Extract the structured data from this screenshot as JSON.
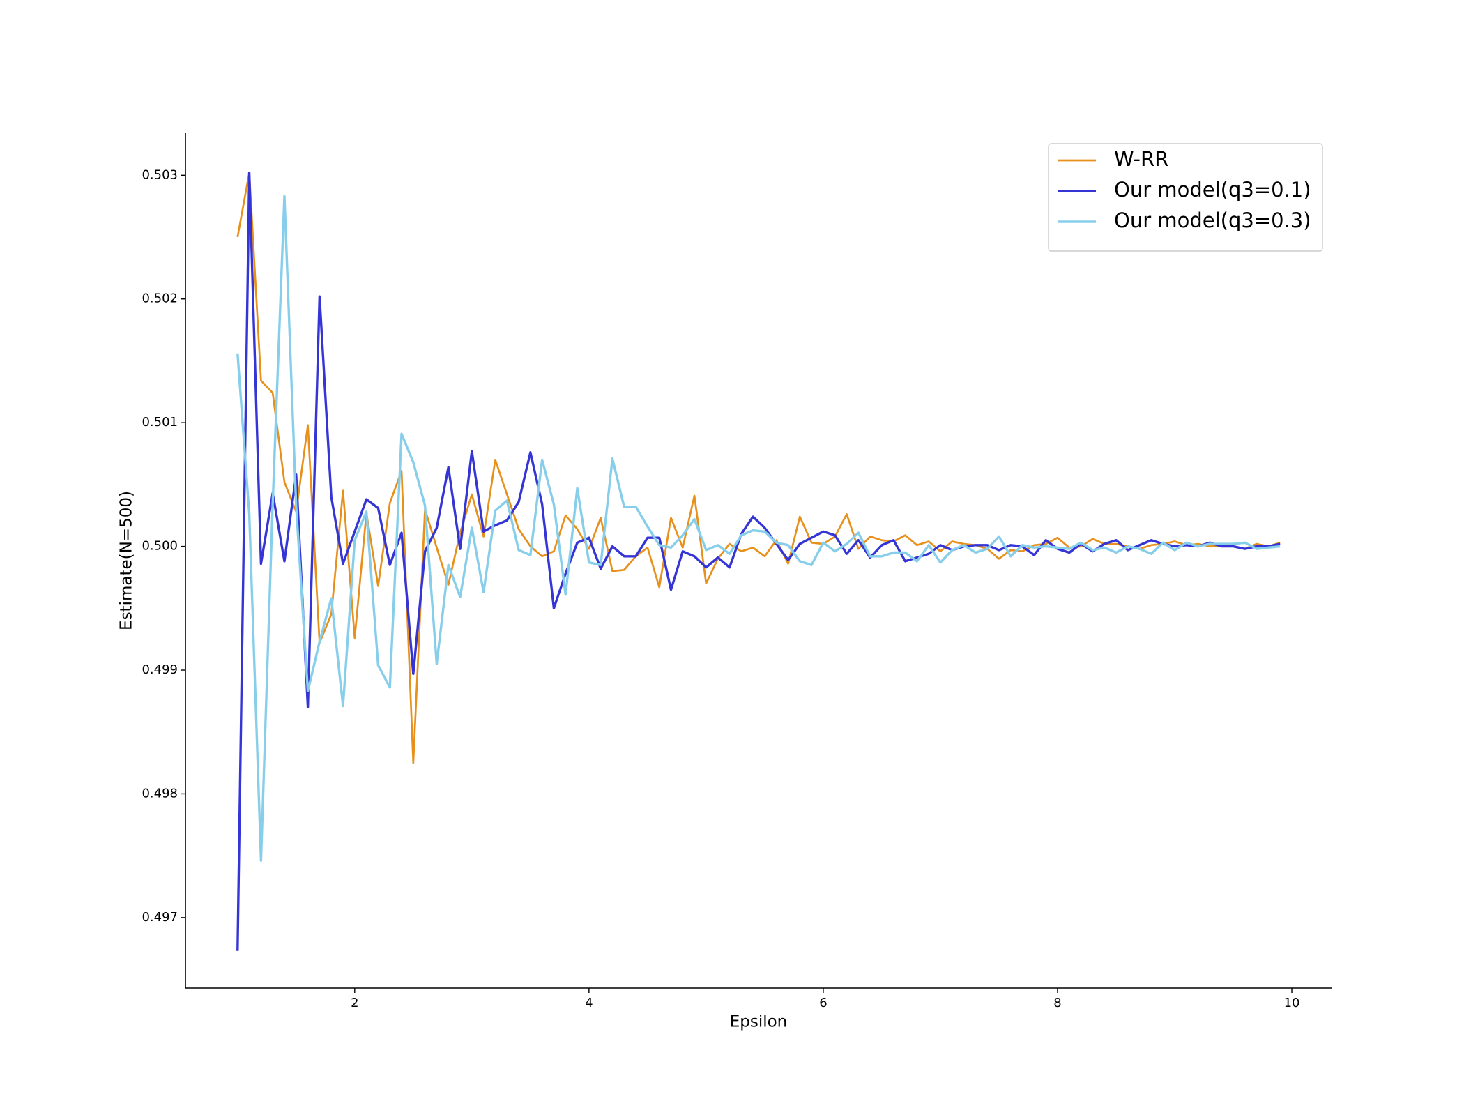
{
  "chart_data": {
    "type": "line",
    "xlabel": "Epsilon",
    "ylabel": "Estimate(N=500)",
    "xlim": [
      0.555,
      10.345
    ],
    "ylim": [
      0.49643,
      0.50334
    ],
    "xticks": [
      2,
      4,
      6,
      8,
      10
    ],
    "yticks": [
      0.497,
      0.498,
      0.499,
      {
        "value": 0.5,
        "label": "0.500"
      },
      0.501,
      0.502,
      0.503
    ],
    "grid": false,
    "legend": "upper right",
    "x": [
      1.0,
      1.1,
      1.2,
      1.3,
      1.4,
      1.5,
      1.6,
      1.7,
      1.8,
      1.9,
      2.0,
      2.1,
      2.2,
      2.3,
      2.4,
      2.5,
      2.6,
      2.7,
      2.8,
      2.9,
      3.0,
      3.1,
      3.2,
      3.3,
      3.4,
      3.5,
      3.6,
      3.7,
      3.8,
      3.9,
      4.0,
      4.1,
      4.2,
      4.3,
      4.4,
      4.5,
      4.6,
      4.7,
      4.8,
      4.9,
      5.0,
      5.1,
      5.2,
      5.3,
      5.4,
      5.5,
      5.6,
      5.7,
      5.8,
      5.9,
      6.0,
      6.1,
      6.2,
      6.3,
      6.4,
      6.5,
      6.6,
      6.7,
      6.8,
      6.9,
      7.0,
      7.1,
      7.2,
      7.3,
      7.4,
      7.5,
      7.6,
      7.7,
      7.8,
      7.9,
      8.0,
      8.1,
      8.2,
      8.3,
      8.4,
      8.5,
      8.6,
      8.7,
      8.8,
      8.9,
      9.0,
      9.1,
      9.2,
      9.3,
      9.4,
      9.5,
      9.6,
      9.7,
      9.8,
      9.9
    ],
    "series": [
      {
        "name": "W-RR",
        "color": "#e8901c",
        "width": 2.7,
        "values": [
          0.5025,
          0.50302,
          0.50134,
          0.50124,
          0.50052,
          0.50028,
          0.50098,
          0.49922,
          0.49945,
          0.50045,
          0.49926,
          0.50027,
          0.49968,
          0.50035,
          0.50061,
          0.49825,
          0.5003,
          0.49999,
          0.49969,
          0.50011,
          0.50042,
          0.50008,
          0.5007,
          0.50042,
          0.50014,
          0.5,
          0.49992,
          0.49996,
          0.50025,
          0.50014,
          0.49998,
          0.50023,
          0.4998,
          0.49981,
          0.49992,
          0.49999,
          0.49967,
          0.50023,
          0.49999,
          0.50041,
          0.4997,
          0.4999,
          0.50002,
          0.49996,
          0.49999,
          0.49992,
          0.50005,
          0.49986,
          0.50024,
          0.50003,
          0.50002,
          0.50008,
          0.50026,
          0.49998,
          0.50008,
          0.50005,
          0.50004,
          0.50009,
          0.50001,
          0.50004,
          0.49996,
          0.50004,
          0.50002,
          0.50001,
          0.49998,
          0.4999,
          0.49997,
          0.49996,
          0.50001,
          0.50002,
          0.50007,
          0.49999,
          0.5,
          0.50006,
          0.50002,
          0.50002,
          0.5,
          0.49998,
          0.50001,
          0.50002,
          0.50004,
          0.50001,
          0.50002,
          0.5,
          0.50001,
          0.5,
          0.49998,
          0.50002,
          0.5,
          0.50003
        ]
      },
      {
        "name": "Our model(q3=0.1)",
        "color": "#3535d6",
        "width": 3.4,
        "values": [
          0.49673,
          0.50302,
          0.49986,
          0.50043,
          0.49988,
          0.50058,
          0.4987,
          0.50202,
          0.5004,
          0.49986,
          0.50012,
          0.50038,
          0.50031,
          0.49985,
          0.50011,
          0.49897,
          0.49996,
          0.50015,
          0.50064,
          0.49998,
          0.50077,
          0.50012,
          0.50017,
          0.50021,
          0.50036,
          0.50076,
          0.50034,
          0.4995,
          0.49978,
          0.50003,
          0.50007,
          0.49982,
          0.5,
          0.49992,
          0.49992,
          0.50007,
          0.50007,
          0.49965,
          0.49996,
          0.49992,
          0.49983,
          0.49991,
          0.49983,
          0.5001,
          0.50024,
          0.50015,
          0.50002,
          0.49989,
          0.50002,
          0.50007,
          0.50012,
          0.50009,
          0.49994,
          0.50005,
          0.49991,
          0.50001,
          0.50005,
          0.49988,
          0.49991,
          0.49994,
          0.50001,
          0.49997,
          0.5,
          0.50001,
          0.50001,
          0.49997,
          0.50001,
          0.5,
          0.49993,
          0.50005,
          0.49998,
          0.49995,
          0.50002,
          0.49996,
          0.50002,
          0.50005,
          0.49997,
          0.50001,
          0.50005,
          0.50002,
          0.5,
          0.50001,
          0.5,
          0.50003,
          0.5,
          0.5,
          0.49998,
          0.5,
          0.5,
          0.50002
        ]
      },
      {
        "name": "Our model(q3=0.3)",
        "color": "#87ceeb",
        "width": 3.4,
        "values": [
          0.50156,
          0.50026,
          0.49746,
          0.50035,
          0.50283,
          0.50033,
          0.49883,
          0.49923,
          0.49958,
          0.49871,
          0.50005,
          0.50028,
          0.49904,
          0.49886,
          0.50091,
          0.50068,
          0.50033,
          0.49905,
          0.49985,
          0.49959,
          0.50015,
          0.49963,
          0.50029,
          0.50037,
          0.49997,
          0.49993,
          0.5007,
          0.50034,
          0.49961,
          0.50047,
          0.49987,
          0.49985,
          0.50071,
          0.50032,
          0.50032,
          0.50016,
          0.50001,
          0.49999,
          0.50009,
          0.50022,
          0.49997,
          0.50001,
          0.49994,
          0.50009,
          0.50013,
          0.50012,
          0.50003,
          0.50001,
          0.49988,
          0.49985,
          0.50003,
          0.49996,
          0.50002,
          0.50011,
          0.49992,
          0.49992,
          0.49995,
          0.49995,
          0.49988,
          0.50001,
          0.49987,
          0.49997,
          0.50001,
          0.49995,
          0.49998,
          0.50008,
          0.49992,
          0.50001,
          0.49999,
          0.5,
          0.49999,
          0.49998,
          0.50003,
          0.49997,
          0.49999,
          0.49995,
          0.5,
          0.49998,
          0.49994,
          0.50003,
          0.49997,
          0.50003,
          0.5,
          0.50002,
          0.50002,
          0.50002,
          0.50003,
          0.49998,
          0.49999,
          0.5
        ]
      }
    ]
  }
}
